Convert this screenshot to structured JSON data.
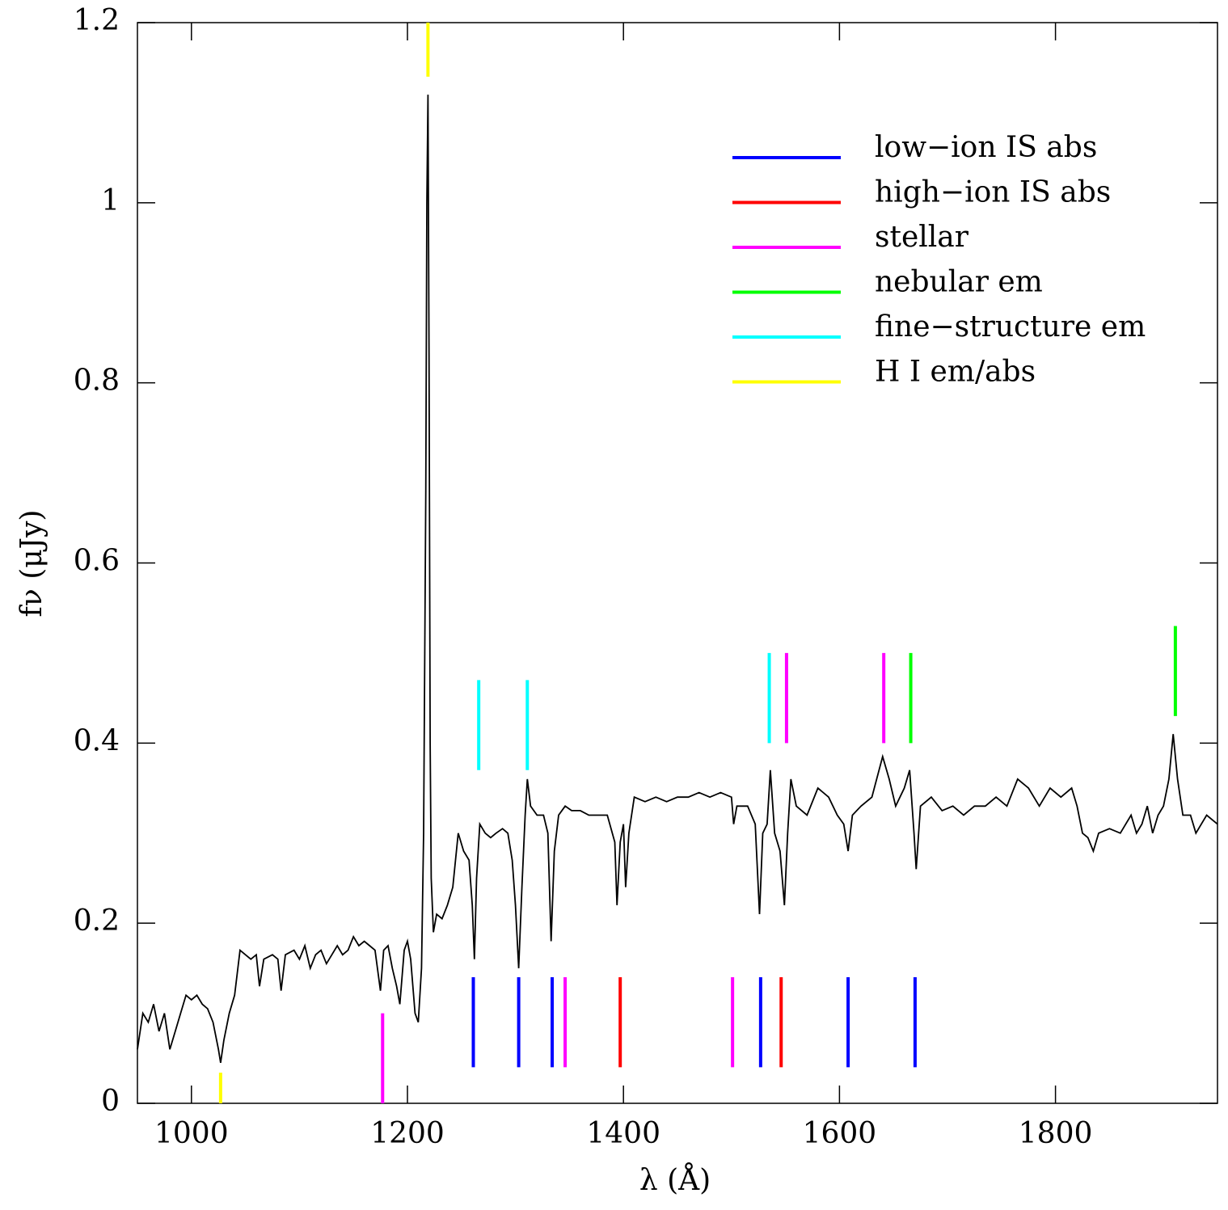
{
  "chart_data": {
    "type": "line",
    "xlabel": "λ (Å)",
    "ylabel": "fν (μJy)",
    "xlim": [
      950,
      1950
    ],
    "ylim": [
      0,
      1.2
    ],
    "xticks": [
      1000,
      1200,
      1400,
      1600,
      1800
    ],
    "yticks": [
      0,
      0.2,
      0.4,
      0.6,
      0.8,
      1,
      1.2
    ],
    "legend": "upper right",
    "series": [
      {
        "color": "#000000",
        "x": [
          950,
          955,
          960,
          965,
          970,
          975,
          980,
          985,
          990,
          995,
          1000,
          1005,
          1010,
          1015,
          1020,
          1025,
          1027,
          1030,
          1035,
          1040,
          1045,
          1050,
          1055,
          1060,
          1063,
          1067,
          1075,
          1080,
          1083,
          1087,
          1095,
          1100,
          1105,
          1110,
          1115,
          1120,
          1125,
          1130,
          1135,
          1140,
          1145,
          1150,
          1155,
          1160,
          1165,
          1170,
          1175,
          1178,
          1182,
          1186,
          1190,
          1193,
          1197,
          1200,
          1203,
          1207,
          1210,
          1213,
          1215,
          1217,
          1218,
          1219,
          1220,
          1221,
          1222,
          1224,
          1227,
          1232,
          1237,
          1242,
          1247,
          1252,
          1257,
          1260,
          1262,
          1264,
          1267,
          1272,
          1277,
          1282,
          1288,
          1293,
          1297,
          1300,
          1303,
          1306,
          1309,
          1311,
          1314,
          1320,
          1326,
          1330,
          1333,
          1336,
          1340,
          1346,
          1352,
          1360,
          1368,
          1375,
          1385,
          1392,
          1394,
          1397,
          1400,
          1402,
          1405,
          1410,
          1420,
          1430,
          1440,
          1450,
          1460,
          1470,
          1480,
          1490,
          1500,
          1502,
          1505,
          1515,
          1522,
          1526,
          1529,
          1533,
          1536,
          1540,
          1545,
          1549,
          1552,
          1555,
          1560,
          1570,
          1580,
          1590,
          1598,
          1604,
          1608,
          1612,
          1620,
          1630,
          1640,
          1646,
          1652,
          1660,
          1665,
          1669,
          1671,
          1675,
          1685,
          1695,
          1705,
          1715,
          1725,
          1735,
          1745,
          1755,
          1765,
          1775,
          1785,
          1795,
          1805,
          1815,
          1820,
          1825,
          1830,
          1835,
          1840,
          1850,
          1860,
          1870,
          1875,
          1880,
          1885,
          1890,
          1895,
          1900,
          1905,
          1909,
          1913,
          1918,
          1925,
          1930,
          1940,
          1950
        ],
        "values": [
          0.06,
          0.1,
          0.09,
          0.11,
          0.08,
          0.1,
          0.06,
          0.08,
          0.1,
          0.12,
          0.115,
          0.12,
          0.11,
          0.105,
          0.09,
          0.06,
          0.045,
          0.07,
          0.1,
          0.12,
          0.17,
          0.165,
          0.16,
          0.165,
          0.13,
          0.16,
          0.165,
          0.16,
          0.125,
          0.165,
          0.17,
          0.16,
          0.175,
          0.15,
          0.165,
          0.17,
          0.155,
          0.165,
          0.175,
          0.165,
          0.17,
          0.185,
          0.175,
          0.18,
          0.175,
          0.17,
          0.125,
          0.17,
          0.175,
          0.15,
          0.13,
          0.11,
          0.17,
          0.18,
          0.16,
          0.1,
          0.09,
          0.15,
          0.3,
          0.68,
          1.0,
          1.12,
          0.83,
          0.4,
          0.25,
          0.19,
          0.21,
          0.205,
          0.22,
          0.24,
          0.3,
          0.28,
          0.27,
          0.22,
          0.16,
          0.25,
          0.31,
          0.3,
          0.295,
          0.3,
          0.305,
          0.3,
          0.27,
          0.22,
          0.15,
          0.24,
          0.32,
          0.36,
          0.33,
          0.32,
          0.32,
          0.3,
          0.18,
          0.28,
          0.32,
          0.33,
          0.325,
          0.325,
          0.32,
          0.32,
          0.32,
          0.29,
          0.22,
          0.29,
          0.31,
          0.24,
          0.3,
          0.34,
          0.335,
          0.34,
          0.335,
          0.34,
          0.34,
          0.345,
          0.34,
          0.345,
          0.34,
          0.31,
          0.33,
          0.33,
          0.31,
          0.21,
          0.3,
          0.31,
          0.37,
          0.3,
          0.28,
          0.22,
          0.3,
          0.36,
          0.33,
          0.32,
          0.35,
          0.34,
          0.32,
          0.31,
          0.28,
          0.32,
          0.33,
          0.34,
          0.385,
          0.36,
          0.33,
          0.35,
          0.37,
          0.3,
          0.26,
          0.33,
          0.34,
          0.325,
          0.33,
          0.32,
          0.33,
          0.33,
          0.34,
          0.33,
          0.36,
          0.35,
          0.33,
          0.35,
          0.34,
          0.35,
          0.33,
          0.3,
          0.295,
          0.28,
          0.3,
          0.305,
          0.3,
          0.32,
          0.3,
          0.31,
          0.33,
          0.3,
          0.32,
          0.33,
          0.36,
          0.41,
          0.36,
          0.32,
          0.32,
          0.3,
          0.32,
          0.31
        ]
      }
    ],
    "line_markers": [
      {
        "name": "low−ion IS abs",
        "color": "#0000ff",
        "lines": [
          [
            1261,
            0.04,
            0.14
          ],
          [
            1303,
            0.04,
            0.14
          ],
          [
            1334,
            0.04,
            0.14
          ],
          [
            1527,
            0.04,
            0.14
          ],
          [
            1608,
            0.04,
            0.14
          ],
          [
            1670,
            0.04,
            0.14
          ]
        ]
      },
      {
        "name": "high−ion IS abs",
        "color": "#ff0000",
        "lines": [
          [
            1397,
            0.04,
            0.14
          ],
          [
            1546,
            0.04,
            0.14
          ]
        ]
      },
      {
        "name": "stellar",
        "color": "#ff00ff",
        "lines": [
          [
            1177,
            0,
            0.1
          ],
          [
            1346,
            0.04,
            0.14
          ],
          [
            1501,
            0.04,
            0.14
          ],
          [
            1551,
            0.4,
            0.5
          ],
          [
            1641,
            0.4,
            0.5
          ]
        ]
      },
      {
        "name": "nebular em",
        "color": "#00ff00",
        "lines": [
          [
            1666,
            0.4,
            0.5
          ],
          [
            1911,
            0.43,
            0.53
          ]
        ]
      },
      {
        "name": "fine−structure em",
        "color": "#00ffff",
        "lines": [
          [
            1266,
            0.37,
            0.47
          ],
          [
            1311,
            0.37,
            0.47
          ],
          [
            1535,
            0.4,
            0.5
          ]
        ]
      },
      {
        "name": "H I em/abs",
        "color": "#ffff00",
        "lines": [
          [
            1027,
            0,
            0.034
          ],
          [
            1219,
            1.14,
            1.2
          ]
        ]
      }
    ]
  }
}
